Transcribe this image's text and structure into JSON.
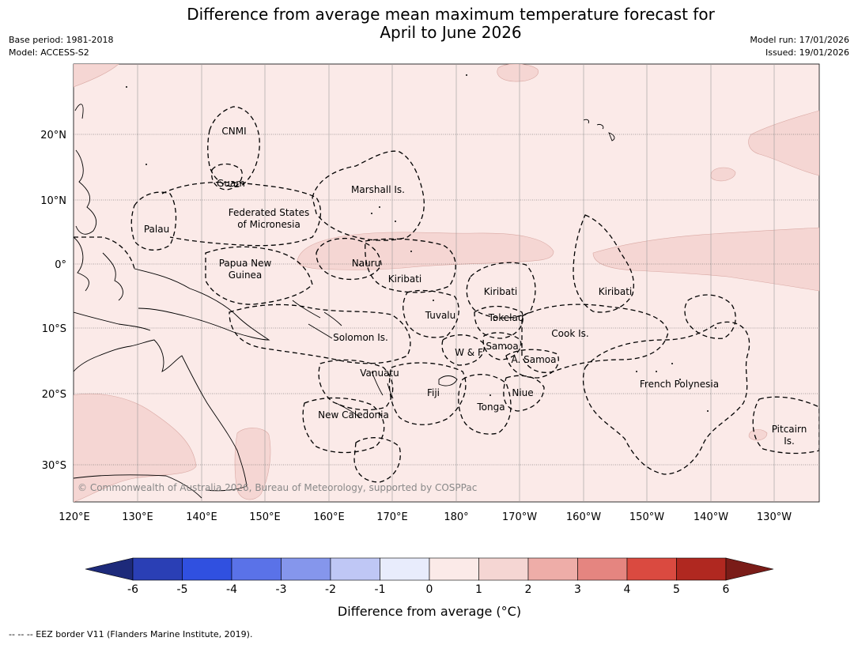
{
  "title_line1": "Difference from average mean maximum temperature forecast for",
  "title_line2": "April to June 2026",
  "meta": {
    "base_period": "Base period: 1981-2018",
    "model": "Model: ACCESS-S2",
    "model_run": "Model run: 17/01/2026",
    "issued": "Issued: 19/01/2026"
  },
  "map": {
    "lat_labels": [
      "20°N",
      "10°N",
      "0°",
      "10°S",
      "20°S",
      "30°S"
    ],
    "lon_labels": [
      "120°E",
      "130°E",
      "140°E",
      "150°E",
      "160°E",
      "170°E",
      "180°",
      "170°W",
      "160°W",
      "150°W",
      "140°W",
      "130°W"
    ],
    "background_anomaly_class": "0 to 1",
    "highlight_anomaly_class": "1 to 2",
    "region_labels": [
      "CNMI",
      "Guam",
      "Marshall Is.",
      "Palau",
      "Federated States",
      "of Micronesia",
      "Papua New",
      "Guinea",
      "Nauru",
      "Kiribati",
      "Kiribati",
      "Kiribati",
      "Tuvalu",
      "Tokelau",
      "Solomon Is.",
      "W & F",
      "Samoa",
      "Cook Is.",
      "A. Samoa",
      "Vanuatu",
      "Fiji",
      "Niue",
      "French Polynesia",
      "Tonga",
      "New Caledonia",
      "Pitcairn",
      "Is."
    ],
    "copyright": "© Commonwealth of Australia 2026, Bureau of Meteorology, supported by COSPPac"
  },
  "legend": {
    "tick_labels": [
      "-6",
      "-5",
      "-4",
      "-3",
      "-2",
      "-1",
      "0",
      "1",
      "2",
      "3",
      "4",
      "5",
      "6"
    ],
    "colors": [
      "#1d2a7a",
      "#2a3fb5",
      "#3050e0",
      "#5a72e8",
      "#8596ec",
      "#bfc7f5",
      "#e8ecfc",
      "#fbeae8",
      "#f5d6d3",
      "#eeada8",
      "#e58580",
      "#da4a40",
      "#b02820",
      "#7a1c18"
    ],
    "label": "Difference from average (°C)"
  },
  "footnote": "--  --  -- EEZ border V11 (Flanders Marine Institute, 2019)."
}
